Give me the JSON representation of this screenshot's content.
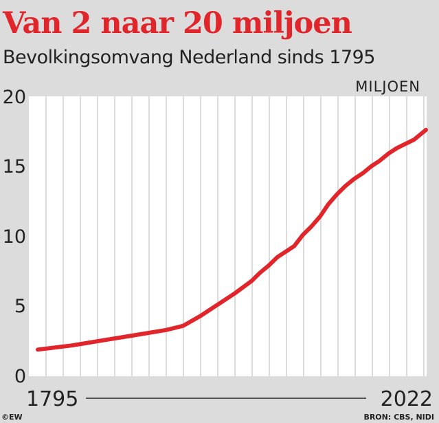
{
  "colors": {
    "background": "#dcdcdc",
    "accent": "#e0262b",
    "plot_background": "#ffffff",
    "grid": "#dcdcdc",
    "text": "#222222"
  },
  "credit": "©EW",
  "source": "BRON: CBS, NIDI",
  "chart_data": {
    "type": "line",
    "title": "Van 2 naar 20 miljoen",
    "subtitle": "Bevolkingsomvang Nederland sinds 1795",
    "unit_label": "MILJOEN",
    "xlabel": "",
    "ylabel": "",
    "xlim": [
      1795,
      2022
    ],
    "ylim": [
      0,
      20
    ],
    "y_ticks": [
      "0",
      "5",
      "10",
      "15",
      "20"
    ],
    "x_ticks": [
      "1795",
      "2022"
    ],
    "grid": "vertical",
    "legend": "none",
    "series": [
      {
        "x": [
          1795,
          1815,
          1830,
          1850,
          1870,
          1880,
          1890,
          1900,
          1910,
          1920,
          1925,
          1930,
          1935,
          1940,
          1945,
          1950,
          1955,
          1960,
          1965,
          1970,
          1975,
          1980,
          1985,
          1990,
          1995,
          2000,
          2005,
          2010,
          2015,
          2020,
          2022
        ],
        "values": [
          1.9,
          2.2,
          2.5,
          2.9,
          3.3,
          3.6,
          4.3,
          5.1,
          5.9,
          6.8,
          7.4,
          7.9,
          8.5,
          8.9,
          9.3,
          10.1,
          10.7,
          11.4,
          12.3,
          13.0,
          13.6,
          14.1,
          14.5,
          15.0,
          15.4,
          15.9,
          16.3,
          16.6,
          16.9,
          17.4,
          17.6
        ]
      }
    ]
  }
}
